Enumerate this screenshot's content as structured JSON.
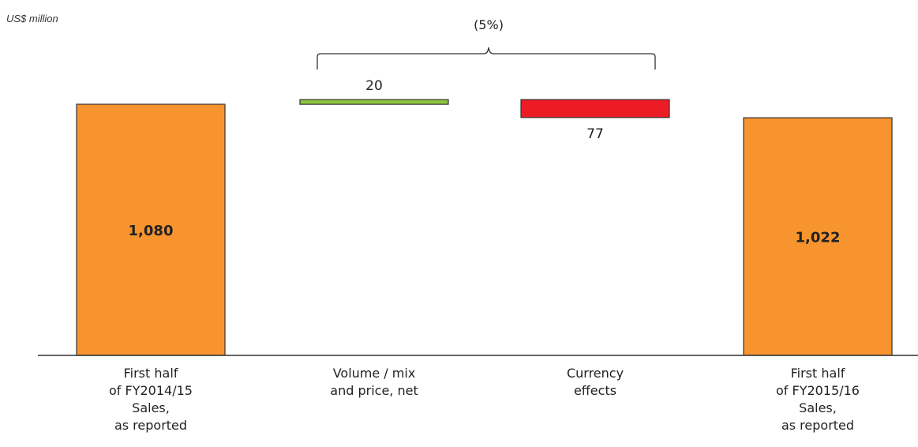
{
  "unit_label": "US$ million",
  "change_label": "(5%)",
  "chart_data": {
    "type": "bar",
    "subtype": "waterfall",
    "categories": [
      "First half\nof FY2014/15\nSales,\nas reported",
      "Volume / mix\nand price, net",
      "Currency\neffects",
      "First half\nof FY2015/16\nSales,\nas reported"
    ],
    "values": [
      1080,
      20,
      -77,
      1022
    ],
    "kinds": [
      "total",
      "increase",
      "decrease",
      "total"
    ],
    "value_labels": [
      "1,080",
      "20",
      "77",
      "1,022"
    ],
    "bracket_label": "(5%)",
    "bracket_span": [
      1,
      2
    ],
    "colors": {
      "total": "#F7942E",
      "increase": "#8DC63F",
      "decrease": "#ED1C24",
      "outline": "#333333"
    },
    "ylabel": "US$ million",
    "ylim": [
      0,
      1200
    ],
    "grid": false
  }
}
